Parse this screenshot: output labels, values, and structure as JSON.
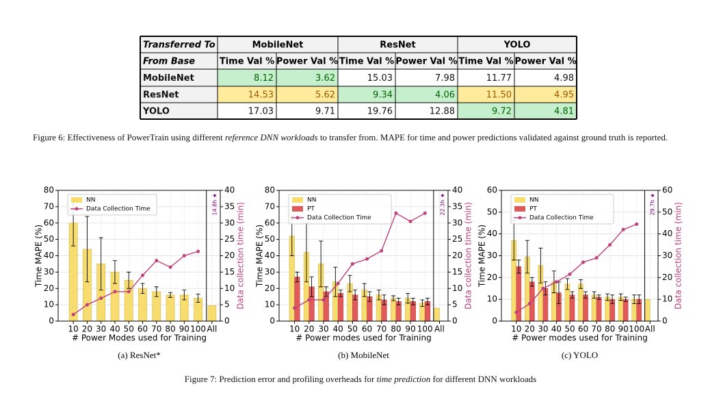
{
  "table": {
    "header": [
      "Transferred To",
      "MobileNet",
      "ResNet",
      "YOLO"
    ],
    "subheader": [
      "From Base",
      "Time Val %",
      "Power Val %",
      "Time Val %",
      "Power Val %",
      "Time Val %",
      "Power Val %"
    ],
    "rows": [
      [
        "MobileNet",
        "8.12",
        "3.62",
        "15.03",
        "7.98",
        "11.77",
        "4.98"
      ],
      [
        "ResNet",
        "14.53",
        "5.62",
        "9.34",
        "4.06",
        "11.50",
        "4.95"
      ],
      [
        "YOLO",
        "17.03",
        "9.71",
        "19.76",
        "12.88",
        "9.72",
        "4.81"
      ]
    ],
    "cell_colors": [
      [
        null,
        "#c6efce",
        "#c6efce",
        null,
        null,
        null,
        null
      ],
      [
        null,
        "#ffeb9c",
        "#ffeb9c",
        "#c6efce",
        "#c6efce",
        "#ffeb9c",
        "#ffeb9c"
      ],
      [
        null,
        null,
        null,
        null,
        null,
        "#c6efce",
        "#c6efce"
      ]
    ]
  },
  "figure6_caption": [
    "Figure 6: Effectiveness of PowerTrain using different ",
    "reference DNN workloads",
    " to transfer from. MAPE for time and power predictions validated against ground truth is reported."
  ],
  "chart_data": [
    {
      "type": "bar",
      "subcaption": "(a) ResNet*",
      "xlabel": "# Power Modes used for Training",
      "ylabel": "Time MAPE (%)",
      "y2label": "Data collection time (min)",
      "annotation": "14.8h ★",
      "categories": [
        "10",
        "20",
        "30",
        "40",
        "50",
        "60",
        "70",
        "80",
        "90",
        "100",
        "All"
      ],
      "series": [
        {
          "name": "NN",
          "type": "bar",
          "color": "#f7dc6f",
          "values": [
            60,
            44,
            35,
            30,
            25,
            20,
            18,
            16,
            16,
            14,
            9.5
          ],
          "errors": [
            14,
            20,
            16,
            7,
            5,
            3,
            3,
            1.5,
            3,
            2.5,
            null
          ]
        },
        {
          "name": "Data Collection Time",
          "type": "line",
          "axis": "y2",
          "color": "#c0407a",
          "values": [
            2,
            5,
            7,
            9,
            9,
            14,
            18.5,
            16.5,
            20,
            21.3,
            null
          ]
        }
      ],
      "ylim": [
        0,
        80
      ],
      "yticks": [
        0,
        10,
        20,
        30,
        40,
        50,
        60,
        70,
        80
      ],
      "y2lim": [
        0,
        40
      ],
      "y2ticks": [
        0,
        5,
        10,
        15,
        20,
        25,
        30,
        35,
        40
      ],
      "grid": true,
      "legend": "upper left"
    },
    {
      "type": "bar",
      "subcaption": "(b) MobileNet",
      "xlabel": "# Power modes used for Training",
      "ylabel": "Time MAPE (%)",
      "y2label": "Data collection time (min)",
      "annotation": "22.3h ★",
      "categories": [
        "10",
        "20",
        "30",
        "40",
        "50",
        "60",
        "70",
        "80",
        "90",
        "100",
        "All"
      ],
      "series": [
        {
          "name": "NN",
          "type": "bar",
          "color": "#f7dc6f",
          "values": [
            52,
            42,
            35,
            24,
            23,
            19,
            16,
            14,
            14,
            11,
            8
          ],
          "errors": [
            12,
            18,
            14,
            9,
            5,
            4,
            3,
            1.5,
            3,
            2,
            null
          ]
        },
        {
          "name": "PT",
          "type": "bar",
          "color": "#e05a5a",
          "values": [
            27,
            21,
            18,
            17,
            16,
            15,
            13,
            12,
            12,
            12,
            null
          ],
          "errors": [
            3,
            6,
            3,
            2,
            3,
            3,
            3,
            2,
            2,
            2,
            null
          ]
        },
        {
          "name": "Data Collection Time",
          "type": "line",
          "axis": "y2",
          "color": "#c0407a",
          "values": [
            4,
            6.5,
            6.5,
            11.5,
            17.5,
            19,
            21.5,
            33,
            30.5,
            33,
            null
          ]
        }
      ],
      "ylim": [
        0,
        80
      ],
      "yticks": [
        0,
        10,
        20,
        30,
        40,
        50,
        60,
        70,
        80
      ],
      "y2lim": [
        0,
        40
      ],
      "y2ticks": [
        0,
        5,
        10,
        15,
        20,
        25,
        30,
        35,
        40
      ],
      "grid": true,
      "legend": "upper left"
    },
    {
      "type": "bar",
      "subcaption": "(c) YOLO",
      "xlabel": "# Power modes used for Training",
      "ylabel": "Time MAPE (%)",
      "y2label": "Data collection time (min)",
      "annotation": "29.7h ★",
      "categories": [
        "10",
        "20",
        "30",
        "40",
        "50",
        "60",
        "70",
        "80",
        "90",
        "100",
        "All"
      ],
      "series": [
        {
          "name": "NN",
          "type": "bar",
          "color": "#f7dc6f",
          "values": [
            37,
            29.5,
            25.5,
            18,
            17,
            17,
            12,
            11,
            11,
            10,
            10
          ],
          "errors": [
            9,
            7.5,
            8,
            5,
            2.5,
            2,
            1.5,
            1.5,
            1.5,
            2,
            null
          ]
        },
        {
          "name": "PT",
          "type": "bar",
          "color": "#e05a5a",
          "values": [
            25,
            18,
            15,
            13,
            12,
            12,
            11,
            10,
            10,
            10,
            null
          ],
          "errors": [
            3,
            2,
            3,
            5,
            1.5,
            1.5,
            1,
            2,
            1,
            2,
            null
          ]
        },
        {
          "name": "Data Collection Time",
          "type": "line",
          "axis": "y2",
          "color": "#c0407a",
          "values": [
            4,
            8,
            15,
            18,
            21.5,
            27,
            29,
            35,
            42,
            44.5,
            null
          ]
        }
      ],
      "ylim": [
        0,
        60
      ],
      "yticks": [
        0,
        10,
        20,
        30,
        40,
        50,
        60
      ],
      "y2lim": [
        0,
        60
      ],
      "y2ticks": [
        0,
        10,
        20,
        30,
        40,
        50,
        60
      ],
      "grid": true,
      "legend": "upper left"
    }
  ],
  "figure7_caption": [
    "Figure 7: Prediction error and profiling overheads for ",
    "time prediction",
    " for different DNN workloads"
  ]
}
